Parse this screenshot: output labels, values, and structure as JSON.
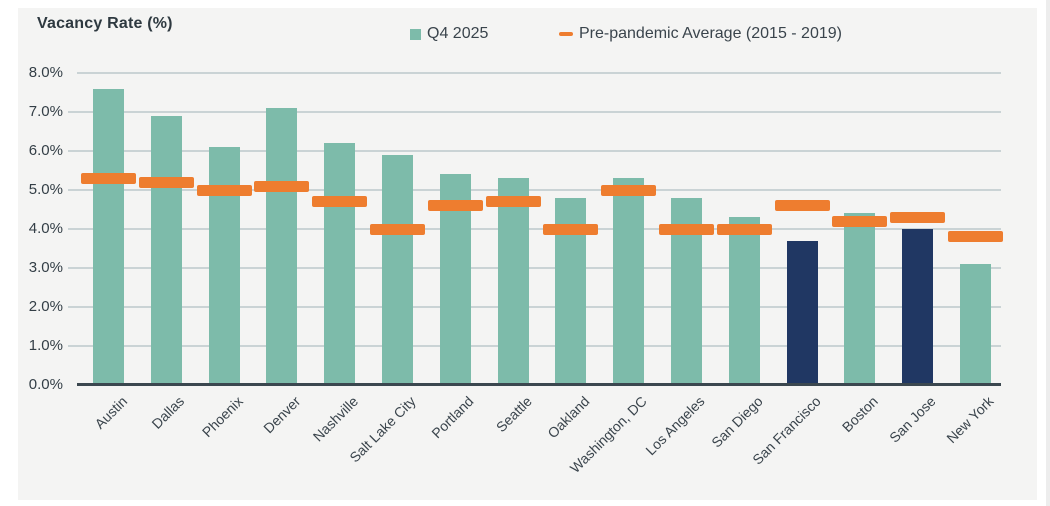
{
  "chart_data": {
    "type": "bar",
    "title": "Vacancy Rate (%)",
    "ylabel": "Vacancy Rate (%)",
    "xlabel": "",
    "categories": [
      "Austin",
      "Dallas",
      "Phoenix",
      "Denver",
      "Nashville",
      "Salt Lake City",
      "Portland",
      "Seattle",
      "Oakland",
      "Washington, DC",
      "Los Angeles",
      "San Diego",
      "San Francisco",
      "Boston",
      "San Jose",
      "New York"
    ],
    "series": [
      {
        "name": "Q4 2025",
        "type": "bar",
        "values": [
          7.6,
          6.9,
          6.1,
          7.1,
          6.2,
          5.9,
          5.4,
          5.3,
          4.8,
          5.3,
          4.8,
          4.3,
          3.7,
          4.4,
          4.0,
          3.1
        ]
      },
      {
        "name": "Pre-pandemic Average (2015 - 2019)",
        "type": "dash-marker",
        "values": [
          5.3,
          5.2,
          5.0,
          5.1,
          4.7,
          4.0,
          4.6,
          4.7,
          4.0,
          5.0,
          4.0,
          4.0,
          4.6,
          4.2,
          4.3,
          3.8
        ]
      }
    ],
    "highlighted_categories": [
      "San Francisco",
      "San Jose"
    ],
    "ylim": [
      0,
      8
    ],
    "ytick_labels": [
      "8.0%",
      "7.0%",
      "6.0%",
      "5.0%",
      "4.0%",
      "3.0%",
      "2.0%",
      "1.0%",
      "0.0%"
    ],
    "grid": true,
    "legend_position": "top",
    "colors": {
      "bar": "#7dbbaa",
      "bar_highlight": "#203763",
      "marker": "#ee7d2f",
      "gridline": "#cad3d5",
      "axis": "#3b474f",
      "card_background": "#f4f4f3",
      "page_background": "#ffffff",
      "text": "#3a444c",
      "title_text": "#2e3940"
    }
  }
}
